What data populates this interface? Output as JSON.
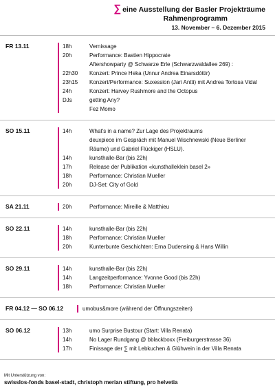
{
  "header": {
    "symbol": "∑",
    "title": "eine Ausstellung der Basler Projekträume",
    "subtitle": "Rahmenprogramm",
    "dates": "13. November – 6. Dezember 2015"
  },
  "sections": [
    {
      "day": "FR 13.11",
      "entries": [
        {
          "time": "18h",
          "text": "Vernissage"
        },
        {
          "time": "20h",
          "text": "Performance: Bastien Hippocrate"
        },
        {
          "text": "Aftershowparty @ Schwarze Erle (Schwarzwaldallee 269) :"
        },
        {
          "time": "22h30",
          "text": "Konzert: Prince Heka (Unnur Andrea Einarsdóttir)"
        },
        {
          "time": "23h15",
          "text": "Konzert/Performance: Suxession (Jari Antti) mit Andrea Tortosa Vidal"
        },
        {
          "time": "24h",
          "text": "Konzert: Harvey Rushmore and the Octopus"
        },
        {
          "time": "DJs",
          "text": "getting Any?"
        },
        {
          "text": "Fez Momo"
        }
      ]
    },
    {
      "day": "SO 15.11",
      "entries": [
        {
          "time": "14h",
          "text": "What's in a name? Zur Lage des Projektraums"
        },
        {
          "text": "deuxpiece im Gespräch mit Manuel Wischnewski (Neue Berliner"
        },
        {
          "text": "Räume) und Gabriel Flückiger (HSLU)."
        },
        {
          "time": "14h",
          "text": "kunsthalle-Bar (bis 22h)"
        },
        {
          "time": "17h",
          "text": "Release der Publikation «kunsthalleklein basel 2»"
        },
        {
          "time": "18h",
          "text": "Performance: Christian Mueller"
        },
        {
          "time": "20h",
          "text": "DJ-Set: City of Gold"
        }
      ]
    },
    {
      "day": "SA 21.11",
      "entries": [
        {
          "time": "20h",
          "text": "Performance: Mireille & Matthieu"
        }
      ]
    },
    {
      "day": "SO 22.11",
      "entries": [
        {
          "time": "14h",
          "text": "kunsthalle-Bar (bis 22h)"
        },
        {
          "time": "18h",
          "text": "Performance: Christian Mueller"
        },
        {
          "time": "20h",
          "text": "Kunterbunte Geschichten: Erna Dudensing & Hans Willin"
        }
      ]
    },
    {
      "day": "SO 29.11",
      "entries": [
        {
          "time": "14h",
          "text": "kunsthalle-Bar (bis 22h)"
        },
        {
          "time": "14h",
          "text": "Langzeitperformance: Yvonne Good (bis 22h)"
        },
        {
          "time": "18h",
          "text": "Performance: Christian Mueller"
        }
      ]
    },
    {
      "day": "FR 04.12 — SO 06.12",
      "entries": [
        {
          "text": "umobus&more (während der Öffnungszeiten)"
        }
      ]
    },
    {
      "day": "SO 06.12",
      "entries": [
        {
          "time": "13h",
          "text": "umo Surprise Bustour (Start: Villa Renata)"
        },
        {
          "time": "14h",
          "text": "No Lager Rundgang @ bblackboxx (Freiburgerstrasse 36)"
        },
        {
          "time": "17h",
          "text": "Finissage der ∑ mit Lebkuchen & Glühwein in der Villa Renata"
        }
      ]
    }
  ],
  "footer": {
    "note": "Mit Unterstützung von:",
    "sponsors": "swisslos-fonds basel-stadt, christoph merian stiftung, pro helvetia"
  }
}
